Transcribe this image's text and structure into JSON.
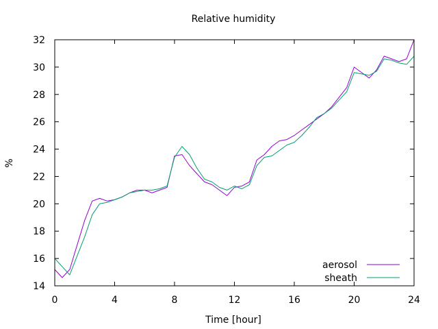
{
  "chart_data": {
    "type": "line",
    "title": "Relative humidity",
    "xlabel": "Time [hour]",
    "ylabel": "%",
    "xlim": [
      0,
      24
    ],
    "ylim": [
      14,
      32
    ],
    "xticks": [
      "0",
      "4",
      "8",
      "12",
      "16",
      "20",
      "24"
    ],
    "yticks": [
      "14",
      "16",
      "18",
      "20",
      "22",
      "24",
      "26",
      "28",
      "30",
      "32"
    ],
    "grid": false,
    "legend_position": "bottom-right",
    "x": [
      0,
      0.5,
      1,
      1.5,
      2,
      2.5,
      3,
      3.5,
      4,
      4.5,
      5,
      5.5,
      6,
      6.5,
      7,
      7.5,
      8,
      8.5,
      9,
      9.5,
      10,
      10.5,
      11,
      11.5,
      12,
      12.5,
      13,
      13.5,
      14,
      14.5,
      15,
      15.5,
      16,
      16.5,
      17,
      17.5,
      18,
      18.5,
      19,
      19.5,
      20,
      20.5,
      21,
      21.5,
      22,
      22.5,
      23,
      23.5,
      24
    ],
    "series": [
      {
        "name": "aerosol",
        "color": "#9400d3",
        "values": [
          15.2,
          14.6,
          15.2,
          17.0,
          18.8,
          20.2,
          20.4,
          20.2,
          20.3,
          20.5,
          20.8,
          21.0,
          21.0,
          20.8,
          21.0,
          21.2,
          23.5,
          23.6,
          22.8,
          22.2,
          21.6,
          21.4,
          21.0,
          20.6,
          21.2,
          21.3,
          21.6,
          23.2,
          23.6,
          24.2,
          24.6,
          24.7,
          25.0,
          25.4,
          25.8,
          26.2,
          26.6,
          27.1,
          27.8,
          28.5,
          30.0,
          29.6,
          29.2,
          29.8,
          30.8,
          30.6,
          30.4,
          30.6,
          32.0
        ]
      },
      {
        "name": "sheath",
        "color": "#009e73",
        "values": [
          16.0,
          15.4,
          14.8,
          16.2,
          17.6,
          19.2,
          20.0,
          20.1,
          20.3,
          20.5,
          20.8,
          20.9,
          21.0,
          21.0,
          21.1,
          21.3,
          23.4,
          24.2,
          23.6,
          22.6,
          21.8,
          21.6,
          21.2,
          21.0,
          21.3,
          21.1,
          21.4,
          22.8,
          23.4,
          23.5,
          23.9,
          24.3,
          24.5,
          25.0,
          25.6,
          26.3,
          26.6,
          27.0,
          27.6,
          28.2,
          29.6,
          29.5,
          29.4,
          29.7,
          30.6,
          30.5,
          30.3,
          30.2,
          30.8
        ]
      }
    ]
  }
}
